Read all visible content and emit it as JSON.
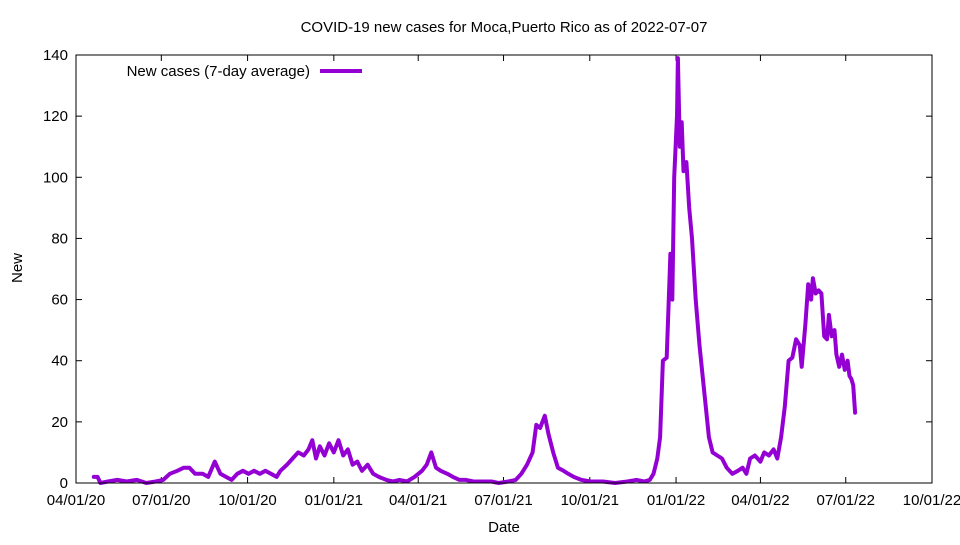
{
  "chart_data": {
    "type": "line",
    "title": "COVID-19 new cases for Moca,Puerto Rico as of 2022-07-07",
    "xlabel": "Date",
    "ylabel": "New",
    "xlim": [
      "2020-04-01",
      "2022-10-01"
    ],
    "ylim": [
      0,
      140
    ],
    "x_ticks": [
      {
        "date": "2020-04-01",
        "label": "04/01/20"
      },
      {
        "date": "2020-07-01",
        "label": "07/01/20"
      },
      {
        "date": "2020-10-01",
        "label": "10/01/20"
      },
      {
        "date": "2021-01-01",
        "label": "01/01/21"
      },
      {
        "date": "2021-04-01",
        "label": "04/01/21"
      },
      {
        "date": "2021-07-01",
        "label": "07/01/21"
      },
      {
        "date": "2021-10-01",
        "label": "10/01/21"
      },
      {
        "date": "2022-01-01",
        "label": "01/01/22"
      },
      {
        "date": "2022-04-01",
        "label": "04/01/22"
      },
      {
        "date": "2022-07-01",
        "label": "07/01/22"
      },
      {
        "date": "2022-10-01",
        "label": "10/01/22"
      }
    ],
    "y_ticks": [
      0,
      20,
      40,
      60,
      80,
      100,
      120,
      140
    ],
    "grid": false,
    "legend_position": "top-left",
    "series": [
      {
        "name": "New cases (7-day average)",
        "color": "#9400d3",
        "points": [
          [
            "2020-04-20",
            2
          ],
          [
            "2020-04-24",
            2
          ],
          [
            "2020-04-27",
            0
          ],
          [
            "2020-05-05",
            0.5
          ],
          [
            "2020-05-15",
            1
          ],
          [
            "2020-05-25",
            0.5
          ],
          [
            "2020-06-05",
            1
          ],
          [
            "2020-06-15",
            0
          ],
          [
            "2020-06-25",
            0.5
          ],
          [
            "2020-07-03",
            1
          ],
          [
            "2020-07-10",
            3
          ],
          [
            "2020-07-18",
            4
          ],
          [
            "2020-07-25",
            5
          ],
          [
            "2020-07-31",
            5
          ],
          [
            "2020-08-06",
            3
          ],
          [
            "2020-08-14",
            3
          ],
          [
            "2020-08-20",
            2
          ],
          [
            "2020-08-27",
            7
          ],
          [
            "2020-09-02",
            3
          ],
          [
            "2020-09-08",
            2
          ],
          [
            "2020-09-14",
            1
          ],
          [
            "2020-09-20",
            3
          ],
          [
            "2020-09-26",
            4
          ],
          [
            "2020-10-02",
            3
          ],
          [
            "2020-10-08",
            4
          ],
          [
            "2020-10-14",
            3
          ],
          [
            "2020-10-20",
            4
          ],
          [
            "2020-10-26",
            3
          ],
          [
            "2020-11-01",
            2
          ],
          [
            "2020-11-05",
            4
          ],
          [
            "2020-11-12",
            6
          ],
          [
            "2020-11-18",
            8
          ],
          [
            "2020-11-24",
            10
          ],
          [
            "2020-11-30",
            9
          ],
          [
            "2020-12-05",
            11
          ],
          [
            "2020-12-09",
            14
          ],
          [
            "2020-12-13",
            8
          ],
          [
            "2020-12-17",
            12
          ],
          [
            "2020-12-22",
            9
          ],
          [
            "2020-12-27",
            13
          ],
          [
            "2021-01-01",
            10
          ],
          [
            "2021-01-06",
            14
          ],
          [
            "2021-01-11",
            9
          ],
          [
            "2021-01-16",
            11
          ],
          [
            "2021-01-21",
            6
          ],
          [
            "2021-01-26",
            7
          ],
          [
            "2021-01-31",
            4
          ],
          [
            "2021-02-06",
            6
          ],
          [
            "2021-02-12",
            3
          ],
          [
            "2021-02-18",
            2
          ],
          [
            "2021-02-26",
            1
          ],
          [
            "2021-03-05",
            0.5
          ],
          [
            "2021-03-12",
            1
          ],
          [
            "2021-03-20",
            0.5
          ],
          [
            "2021-03-28",
            2
          ],
          [
            "2021-04-05",
            4
          ],
          [
            "2021-04-10",
            6
          ],
          [
            "2021-04-15",
            10
          ],
          [
            "2021-04-20",
            5
          ],
          [
            "2021-04-25",
            4
          ],
          [
            "2021-05-02",
            3
          ],
          [
            "2021-05-08",
            2
          ],
          [
            "2021-05-15",
            1
          ],
          [
            "2021-05-22",
            1
          ],
          [
            "2021-05-30",
            0.5
          ],
          [
            "2021-06-08",
            0.5
          ],
          [
            "2021-06-18",
            0.5
          ],
          [
            "2021-06-26",
            0
          ],
          [
            "2021-07-06",
            0.5
          ],
          [
            "2021-07-14",
            1
          ],
          [
            "2021-07-20",
            3
          ],
          [
            "2021-07-26",
            6
          ],
          [
            "2021-08-01",
            10
          ],
          [
            "2021-08-05",
            19
          ],
          [
            "2021-08-09",
            18
          ],
          [
            "2021-08-14",
            22
          ],
          [
            "2021-08-18",
            16
          ],
          [
            "2021-08-23",
            10
          ],
          [
            "2021-08-28",
            5
          ],
          [
            "2021-09-03",
            4
          ],
          [
            "2021-09-08",
            3
          ],
          [
            "2021-09-14",
            2
          ],
          [
            "2021-09-22",
            1
          ],
          [
            "2021-10-02",
            0.5
          ],
          [
            "2021-10-15",
            0.5
          ],
          [
            "2021-10-28",
            0
          ],
          [
            "2021-11-10",
            0.5
          ],
          [
            "2021-11-20",
            1
          ],
          [
            "2021-11-28",
            0.5
          ],
          [
            "2021-12-04",
            1
          ],
          [
            "2021-12-08",
            3
          ],
          [
            "2021-12-12",
            8
          ],
          [
            "2021-12-15",
            15
          ],
          [
            "2021-12-18",
            40
          ],
          [
            "2021-12-22",
            41
          ],
          [
            "2021-12-26",
            75
          ],
          [
            "2021-12-28",
            60
          ],
          [
            "2021-12-30",
            100
          ],
          [
            "2022-01-02",
            120
          ],
          [
            "2022-01-03",
            139
          ],
          [
            "2022-01-05",
            110
          ],
          [
            "2022-01-07",
            118
          ],
          [
            "2022-01-09",
            102
          ],
          [
            "2022-01-12",
            105
          ],
          [
            "2022-01-15",
            90
          ],
          [
            "2022-01-18",
            80
          ],
          [
            "2022-01-22",
            60
          ],
          [
            "2022-01-26",
            45
          ],
          [
            "2022-01-31",
            30
          ],
          [
            "2022-02-05",
            15
          ],
          [
            "2022-02-09",
            10
          ],
          [
            "2022-02-14",
            9
          ],
          [
            "2022-02-19",
            8
          ],
          [
            "2022-02-24",
            5
          ],
          [
            "2022-03-02",
            3
          ],
          [
            "2022-03-08",
            4
          ],
          [
            "2022-03-13",
            5
          ],
          [
            "2022-03-17",
            3
          ],
          [
            "2022-03-21",
            8
          ],
          [
            "2022-03-26",
            9
          ],
          [
            "2022-04-01",
            7
          ],
          [
            "2022-04-05",
            10
          ],
          [
            "2022-04-10",
            9
          ],
          [
            "2022-04-15",
            11
          ],
          [
            "2022-04-19",
            8
          ],
          [
            "2022-04-23",
            15
          ],
          [
            "2022-04-27",
            25
          ],
          [
            "2022-05-01",
            40
          ],
          [
            "2022-05-05",
            41
          ],
          [
            "2022-05-09",
            47
          ],
          [
            "2022-05-13",
            45
          ],
          [
            "2022-05-15",
            38
          ],
          [
            "2022-05-19",
            52
          ],
          [
            "2022-05-22",
            65
          ],
          [
            "2022-05-25",
            60
          ],
          [
            "2022-05-27",
            67
          ],
          [
            "2022-05-30",
            62
          ],
          [
            "2022-06-02",
            63
          ],
          [
            "2022-06-05",
            62
          ],
          [
            "2022-06-08",
            48
          ],
          [
            "2022-06-11",
            47
          ],
          [
            "2022-06-13",
            55
          ],
          [
            "2022-06-16",
            48
          ],
          [
            "2022-06-19",
            50
          ],
          [
            "2022-06-21",
            42
          ],
          [
            "2022-06-24",
            38
          ],
          [
            "2022-06-27",
            42
          ],
          [
            "2022-06-30",
            37
          ],
          [
            "2022-07-03",
            40
          ],
          [
            "2022-07-05",
            35
          ],
          [
            "2022-07-07",
            34
          ],
          [
            "2022-07-09",
            32
          ],
          [
            "2022-07-11",
            23
          ]
        ]
      }
    ]
  }
}
